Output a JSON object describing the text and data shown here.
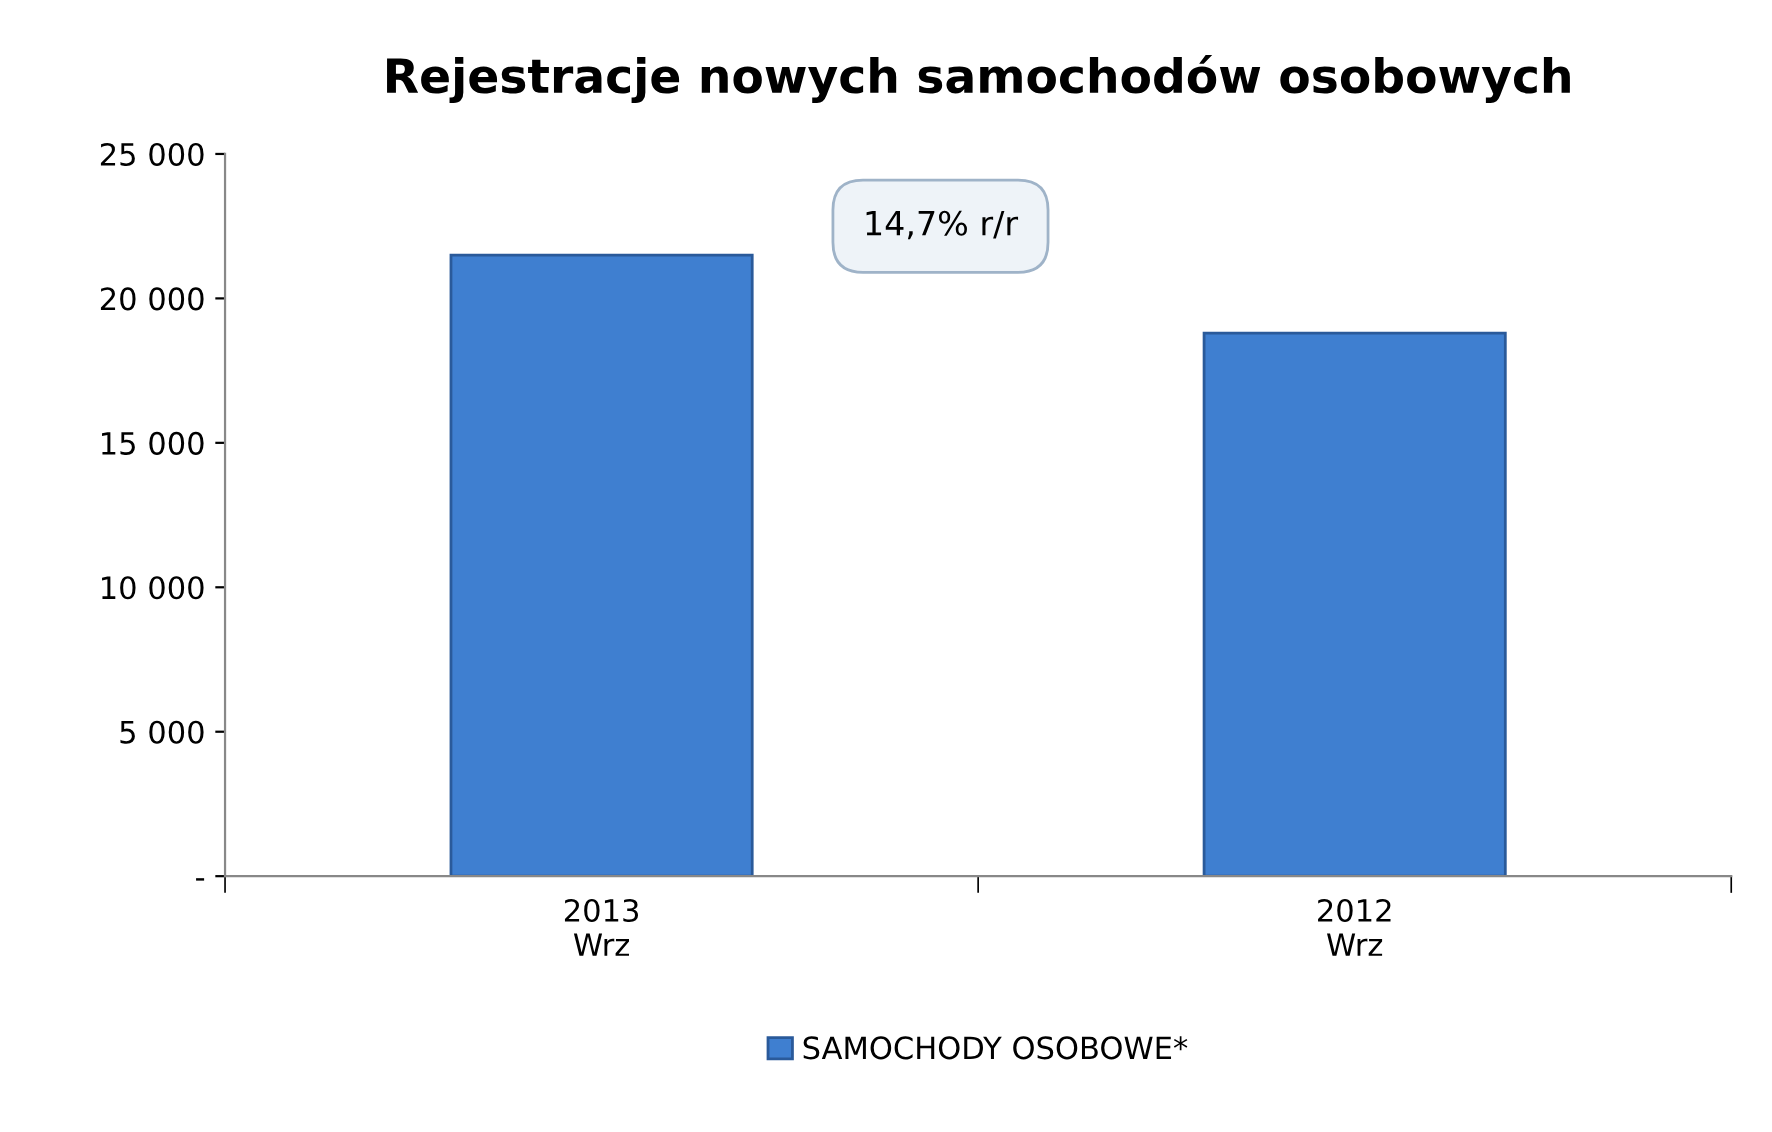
{
  "chart_data": {
    "type": "bar",
    "title": "Rejestracje nowych samochodów osobowych",
    "categories": [
      "2013\nWrz",
      "2012\nWrz"
    ],
    "series": [
      {
        "name": "SAMOCHODY OSOBOWE*",
        "color": "#3f7fd0",
        "values": [
          21500,
          18800
        ]
      }
    ],
    "ylim": [
      0,
      25000
    ],
    "yticks": [
      {
        "value": 0,
        "label": "-"
      },
      {
        "value": 5000,
        "label": "5 000"
      },
      {
        "value": 10000,
        "label": "10 000"
      },
      {
        "value": 15000,
        "label": "15 000"
      },
      {
        "value": 20000,
        "label": "20 000"
      },
      {
        "value": 25000,
        "label": "25 000"
      }
    ],
    "annotations": [
      "14,7% r/r"
    ],
    "grid": false,
    "legend": "bottom"
  }
}
